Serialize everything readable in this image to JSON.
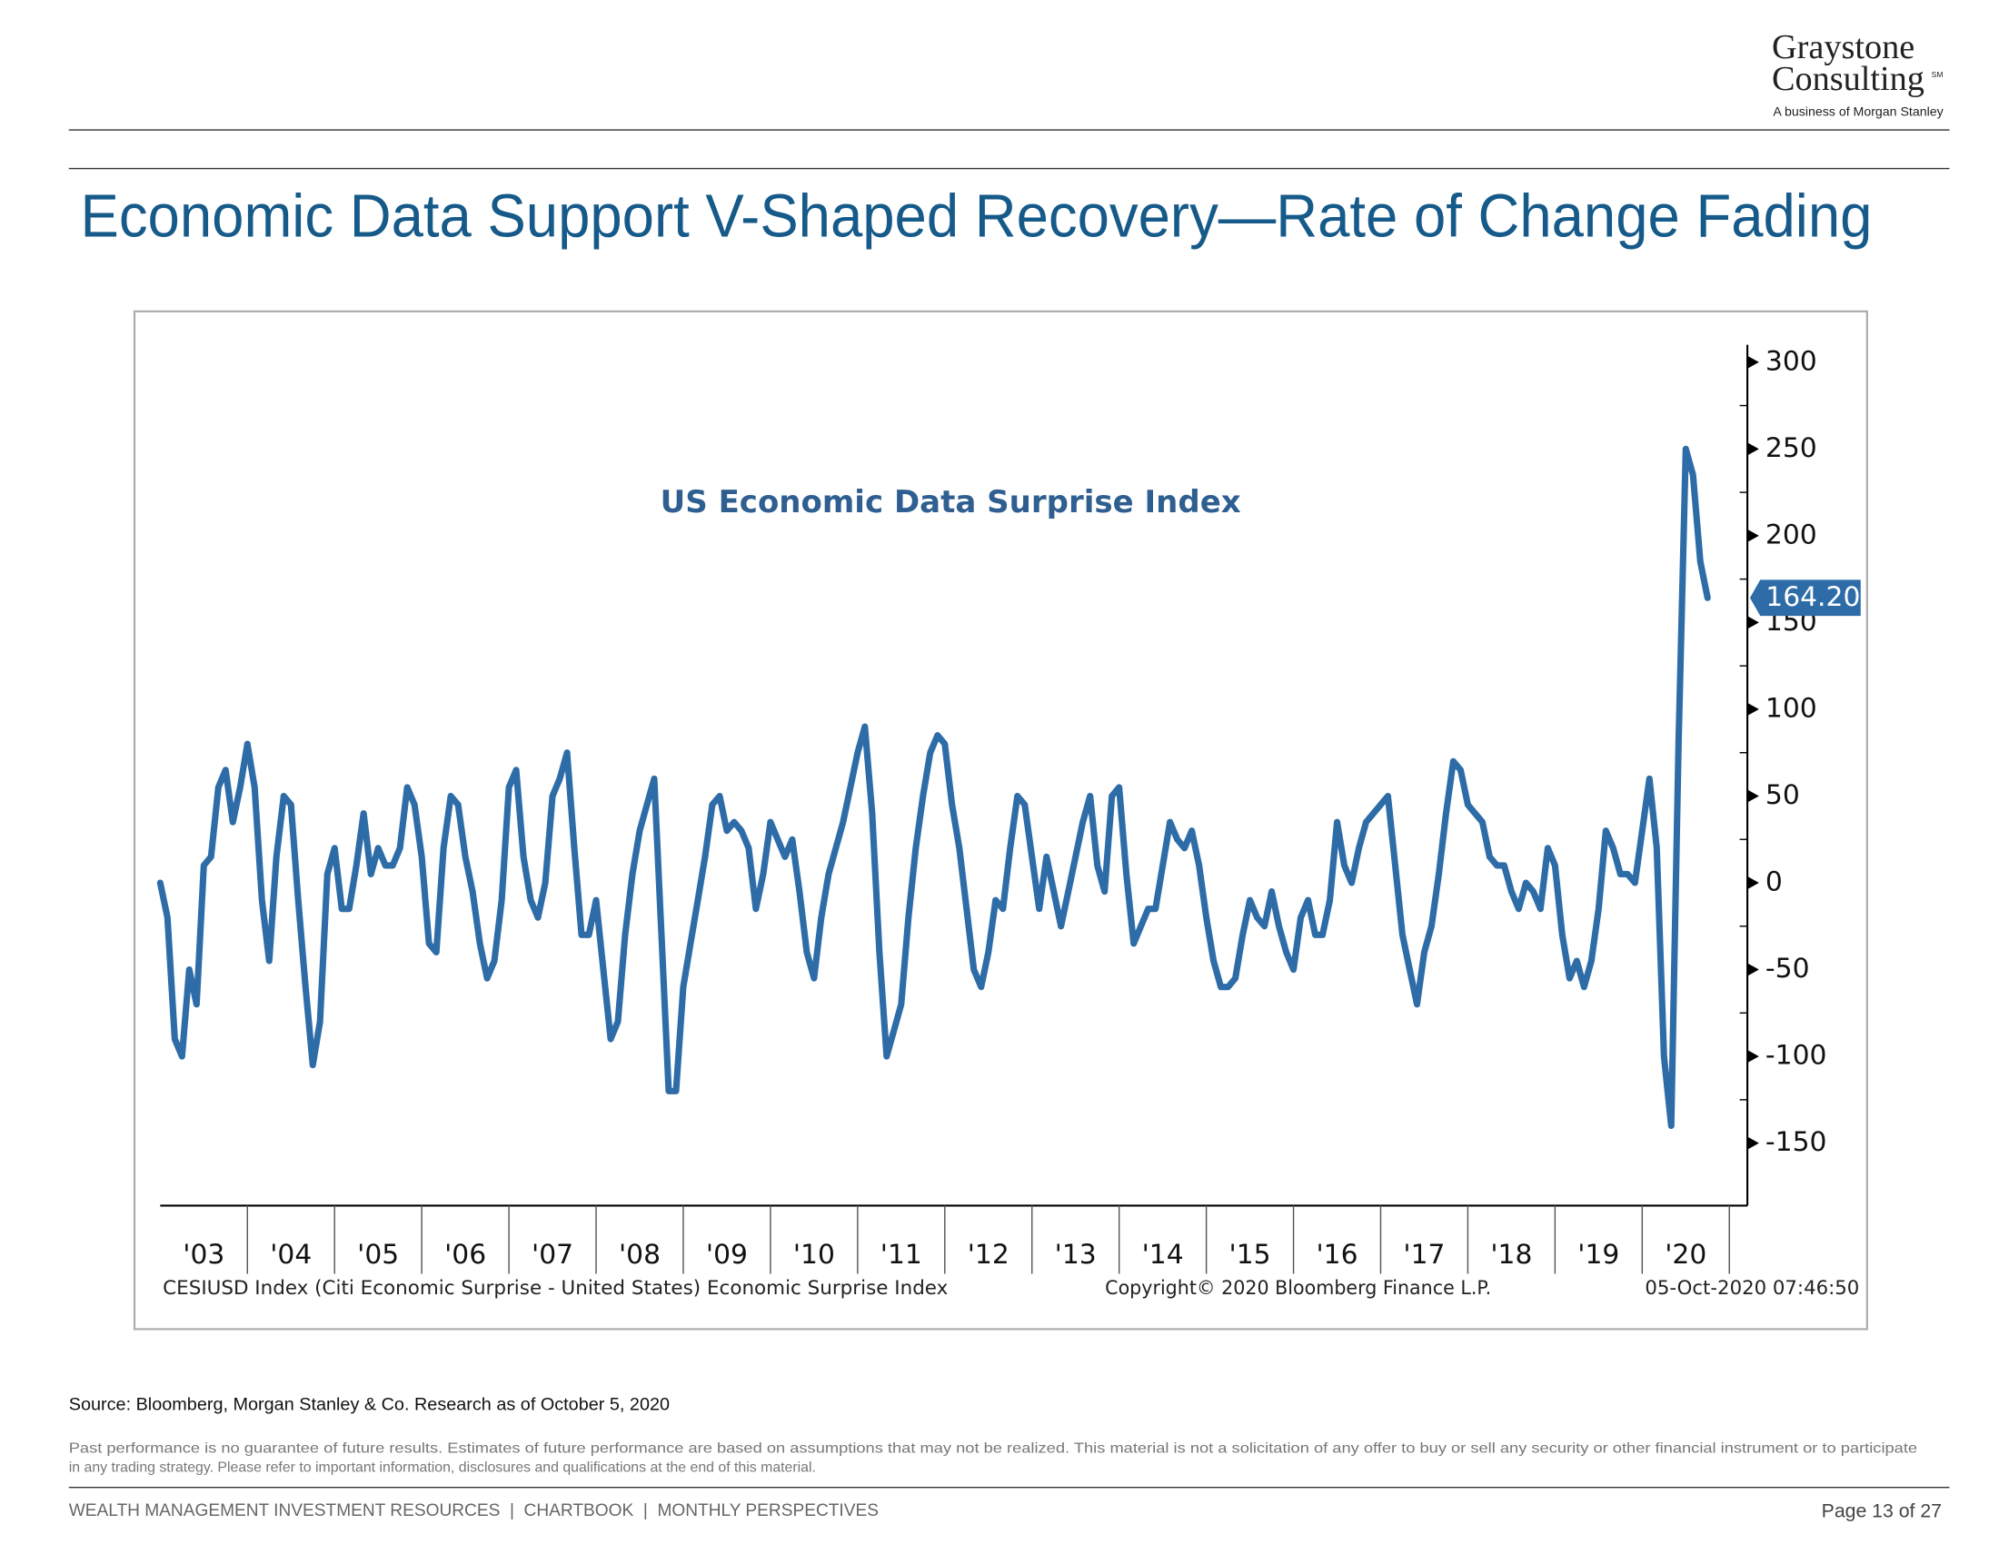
{
  "header": {
    "logo_line1": "Graystone",
    "logo_line2": "Consulting",
    "logo_mark": "SM",
    "logo_tagline": "A business of Morgan Stanley"
  },
  "title": "Economic Data Support V-Shaped Recovery—Rate of Change Fading",
  "chart_data": {
    "type": "line",
    "title": "US Economic Data Surprise Index",
    "color": "#2e6ca8",
    "x": [
      2003,
      2003.083,
      2003.167,
      2003.25,
      2003.333,
      2003.417,
      2003.5,
      2003.583,
      2003.667,
      2003.75,
      2003.833,
      2003.917,
      2004,
      2004.083,
      2004.167,
      2004.25,
      2004.333,
      2004.417,
      2004.5,
      2004.583,
      2004.667,
      2004.75,
      2004.833,
      2004.917,
      2005,
      2005.083,
      2005.167,
      2005.25,
      2005.333,
      2005.417,
      2005.5,
      2005.583,
      2005.667,
      2005.75,
      2005.833,
      2005.917,
      2006,
      2006.083,
      2006.167,
      2006.25,
      2006.333,
      2006.417,
      2006.5,
      2006.583,
      2006.667,
      2006.75,
      2006.833,
      2006.917,
      2007,
      2007.083,
      2007.167,
      2007.25,
      2007.333,
      2007.417,
      2007.5,
      2007.583,
      2007.667,
      2007.75,
      2007.833,
      2007.917,
      2008,
      2008.083,
      2008.167,
      2008.25,
      2008.333,
      2008.417,
      2008.5,
      2008.583,
      2008.667,
      2008.75,
      2008.833,
      2008.917,
      2009,
      2009.083,
      2009.167,
      2009.25,
      2009.333,
      2009.417,
      2009.5,
      2009.583,
      2009.667,
      2009.75,
      2009.833,
      2009.917,
      2010,
      2010.083,
      2010.167,
      2010.25,
      2010.333,
      2010.417,
      2010.5,
      2010.583,
      2010.667,
      2010.75,
      2010.833,
      2010.917,
      2011,
      2011.083,
      2011.167,
      2011.25,
      2011.333,
      2011.417,
      2011.5,
      2011.583,
      2011.667,
      2011.75,
      2011.833,
      2011.917,
      2012,
      2012.083,
      2012.167,
      2012.25,
      2012.333,
      2012.417,
      2012.5,
      2012.583,
      2012.667,
      2012.75,
      2012.833,
      2012.917,
      2013,
      2013.083,
      2013.167,
      2013.25,
      2013.333,
      2013.417,
      2013.5,
      2013.583,
      2013.667,
      2013.75,
      2013.833,
      2013.917,
      2014,
      2014.083,
      2014.167,
      2014.25,
      2014.333,
      2014.417,
      2014.5,
      2014.583,
      2014.667,
      2014.75,
      2014.833,
      2014.917,
      2015,
      2015.083,
      2015.167,
      2015.25,
      2015.333,
      2015.417,
      2015.5,
      2015.583,
      2015.667,
      2015.75,
      2015.833,
      2015.917,
      2016,
      2016.083,
      2016.167,
      2016.25,
      2016.333,
      2016.417,
      2016.5,
      2016.583,
      2016.667,
      2016.75,
      2016.833,
      2016.917,
      2017,
      2017.083,
      2017.167,
      2017.25,
      2017.333,
      2017.417,
      2017.5,
      2017.583,
      2017.667,
      2017.75,
      2017.833,
      2017.917,
      2018,
      2018.083,
      2018.167,
      2018.25,
      2018.333,
      2018.417,
      2018.5,
      2018.583,
      2018.667,
      2018.75,
      2018.833,
      2018.917,
      2019,
      2019.083,
      2019.167,
      2019.25,
      2019.333,
      2019.417,
      2019.5,
      2019.583,
      2019.667,
      2019.75,
      2019.833,
      2019.917,
      2020,
      2020.083,
      2020.167,
      2020.25,
      2020.333,
      2020.417,
      2020.5,
      2020.583,
      2020.667,
      2020.75
    ],
    "values": [
      0,
      -20,
      -90,
      -100,
      -50,
      -70,
      10,
      15,
      55,
      65,
      35,
      55,
      80,
      55,
      -10,
      -45,
      15,
      50,
      45,
      -10,
      -60,
      -105,
      -80,
      5,
      20,
      -15,
      -15,
      10,
      40,
      5,
      20,
      10,
      10,
      20,
      55,
      45,
      15,
      -35,
      -40,
      20,
      50,
      45,
      15,
      -5,
      -35,
      -55,
      -45,
      -10,
      55,
      65,
      15,
      -10,
      -20,
      0,
      50,
      60,
      75,
      20,
      -30,
      -30,
      -10,
      -50,
      -90,
      -80,
      -30,
      5,
      30,
      45,
      60,
      -30,
      -120,
      -120,
      -60,
      -35,
      -10,
      15,
      45,
      50,
      30,
      35,
      30,
      20,
      -15,
      5,
      35,
      25,
      15,
      25,
      -5,
      -40,
      -55,
      -20,
      5,
      20,
      35,
      55,
      75,
      90,
      40,
      -40,
      -100,
      -85,
      -70,
      -20,
      20,
      50,
      75,
      85,
      80,
      45,
      20,
      -15,
      -50,
      -60,
      -40,
      -10,
      -15,
      20,
      50,
      45,
      15,
      -15,
      15,
      -5,
      -25,
      -5,
      15,
      35,
      50,
      10,
      -5,
      50,
      55,
      5,
      -35,
      -25,
      -15,
      -15,
      10,
      35,
      25,
      20,
      30,
      10,
      -20,
      -45,
      -60,
      -60,
      -55,
      -30,
      -10,
      -20,
      -25,
      -5,
      -25,
      -40,
      -50,
      -20,
      -10,
      -30,
      -30,
      -10,
      35,
      10,
      0,
      20,
      35,
      40,
      45,
      50,
      10,
      -30,
      -50,
      -70,
      -40,
      -25,
      5,
      40,
      70,
      65,
      45,
      40,
      35,
      15,
      10,
      10,
      -5,
      -15,
      0,
      -5,
      -15,
      20,
      10,
      -30,
      -55,
      -45,
      -60,
      -45,
      -15,
      30,
      20,
      5,
      5,
      0,
      30,
      60,
      20,
      -100,
      -140,
      80,
      250,
      235,
      185,
      164.2
    ],
    "callout": {
      "value": 164.2,
      "label": "164.20"
    },
    "xlim": [
      2003,
      2021
    ],
    "xticks": [
      {
        "value": 2003.5,
        "label": "'03"
      },
      {
        "value": 2004.5,
        "label": "'04"
      },
      {
        "value": 2005.5,
        "label": "'05"
      },
      {
        "value": 2006.5,
        "label": "'06"
      },
      {
        "value": 2007.5,
        "label": "'07"
      },
      {
        "value": 2008.5,
        "label": "'08"
      },
      {
        "value": 2009.5,
        "label": "'09"
      },
      {
        "value": 2010.5,
        "label": "'10"
      },
      {
        "value": 2011.5,
        "label": "'11"
      },
      {
        "value": 2012.5,
        "label": "'12"
      },
      {
        "value": 2013.5,
        "label": "'13"
      },
      {
        "value": 2014.5,
        "label": "'14"
      },
      {
        "value": 2015.5,
        "label": "'15"
      },
      {
        "value": 2016.5,
        "label": "'16"
      },
      {
        "value": 2017.5,
        "label": "'17"
      },
      {
        "value": 2018.5,
        "label": "'18"
      },
      {
        "value": 2019.5,
        "label": "'19"
      },
      {
        "value": 2020.5,
        "label": "'20"
      }
    ],
    "ylim": [
      -186,
      310
    ],
    "yticks": [
      300,
      250,
      200,
      150,
      100,
      50,
      0,
      -50,
      -100,
      -150
    ],
    "footnote_left": "CESIUSD Index (Citi Economic Surprise - United States) Economic Surprise Index",
    "footnote_center": "Copyright© 2020 Bloomberg Finance L.P.",
    "footnote_right": "05-Oct-2020 07:46:50"
  },
  "source": "Source: Bloomberg,  Morgan Stanley & Co. Research as of October 5, 2020",
  "disclaimer": [
    "Past performance is no guarantee of future results. Estimates of future performance are based on assumptions that may not be realized. This material is not a solicitation of any offer to buy or sell any security or other financial instrument or to participate",
    "in any trading strategy. Please refer to important information, disclosures and qualifications at the end of this material."
  ],
  "footer": {
    "left": "WEALTH MANAGEMENT INVESTMENT RESOURCES  |  CHARTBOOK  |  MONTHLY PERSPECTIVES",
    "page": "Page 13 of 27"
  }
}
